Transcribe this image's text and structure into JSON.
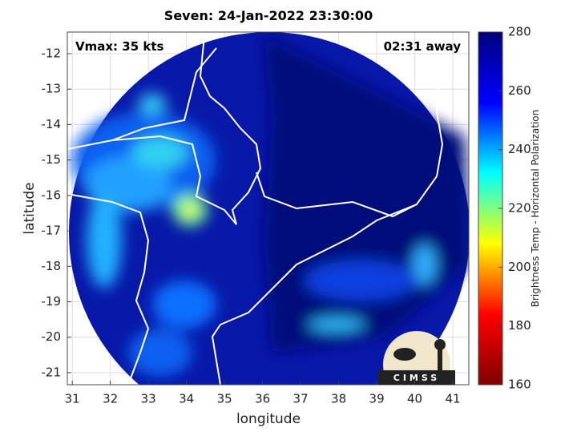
{
  "chart_data": {
    "type": "image",
    "title": "Seven: 24-Jan-2022 23:30:00",
    "xlabel": "longitude",
    "ylabel": "latitude",
    "xlim": [
      30.87,
      41.42
    ],
    "xticks": [
      31,
      32,
      33,
      34,
      35,
      36,
      37,
      38,
      39,
      40,
      41
    ],
    "ylim": [
      -21.34,
      -11.39
    ],
    "yticks": [
      -12,
      -13,
      -14,
      -15,
      -16,
      -17,
      -18,
      -19,
      -20,
      -21
    ],
    "grid": true,
    "annotations": {
      "vmax": "Vmax: 35 kts",
      "time_away": "02:31 away",
      "logo": "CIMSS"
    },
    "colorbar": {
      "label": "Brightness Temp - Horizontal Polarization",
      "clim": [
        160,
        280
      ],
      "ticks": [
        160,
        180,
        200,
        220,
        240,
        260,
        280
      ],
      "colormap": [
        "#800000",
        "#ff0000",
        "#ffff00",
        "#00ffff",
        "#0000ff",
        "#000080"
      ]
    }
  }
}
